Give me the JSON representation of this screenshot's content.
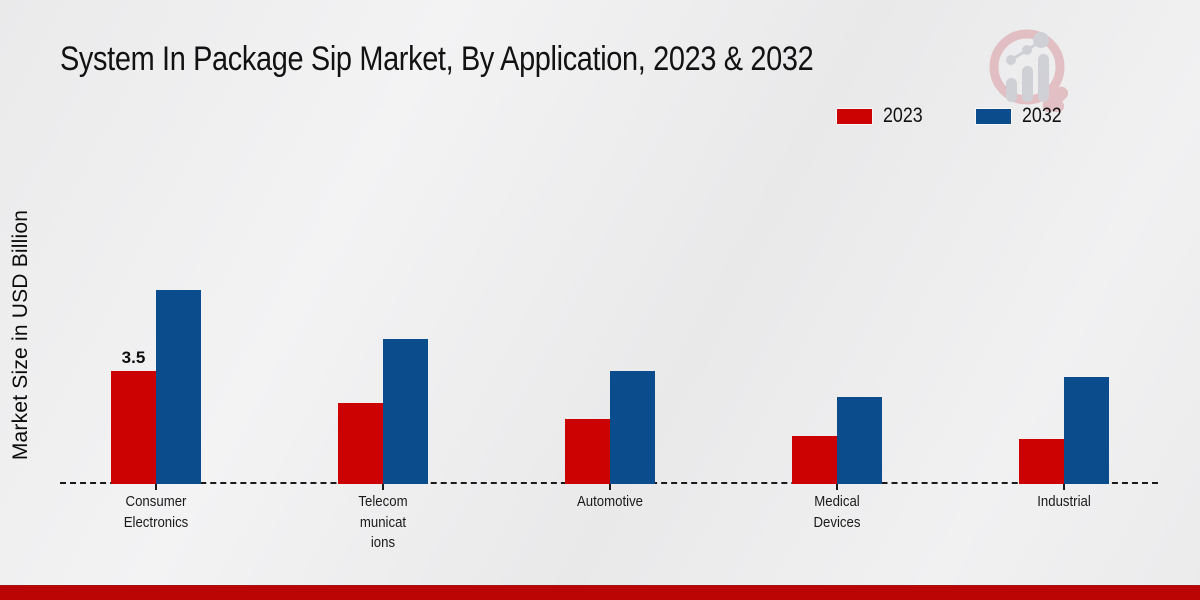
{
  "title": "System In Package Sip Market, By Application, 2023 & 2032",
  "y_axis_label": "Market Size in USD Billion",
  "legend": {
    "items": [
      {
        "label": "2023",
        "color": "#cc0101"
      },
      {
        "label": "2032",
        "color": "#0b4c8c"
      }
    ],
    "position": "top-right"
  },
  "colors": {
    "series_2023": "#cc0101",
    "series_2032": "#0b4c8c",
    "footer_bar": "#bb0404",
    "baseline": "#1b1b1b"
  },
  "watermark_icon": "magnifier-bar-chart-logo",
  "chart_data": {
    "type": "bar",
    "title": "System In Package Sip Market, By Application, 2023 & 2032",
    "ylabel": "Market Size in USD Billion",
    "xlabel": "",
    "categories": [
      "Consumer Electronics",
      "Telecommunications",
      "Automotive",
      "Medical Devices",
      "Industrial"
    ],
    "category_label_lines": [
      [
        "Consumer",
        "Electronics"
      ],
      [
        "Telecom",
        "municat",
        "ions"
      ],
      [
        "Automotive"
      ],
      [
        "Medical",
        "Devices"
      ],
      [
        "Industrial"
      ]
    ],
    "series": [
      {
        "name": "2023",
        "color": "#cc0101",
        "values": [
          3.5,
          2.5,
          2.0,
          1.5,
          1.4
        ]
      },
      {
        "name": "2032",
        "color": "#0b4c8c",
        "values": [
          6.0,
          4.5,
          3.5,
          2.7,
          3.3
        ]
      }
    ],
    "annotations": [
      {
        "category_index": 0,
        "series": "2023",
        "text": "3.5"
      }
    ],
    "ylim": [
      0,
      6.5
    ],
    "grid": false,
    "baseline_style": "dashed",
    "legend_position": "top-right"
  }
}
